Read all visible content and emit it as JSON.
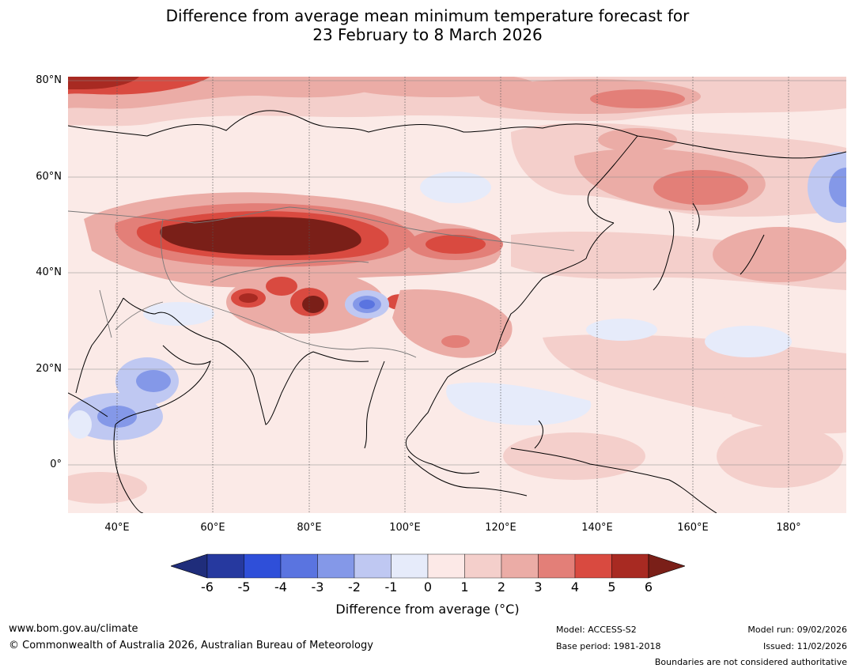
{
  "title_line1": "Difference from average mean minimum temperature forecast for",
  "title_line2": "23 February to 8 March 2026",
  "lat_labels": [
    "80°N",
    "60°N",
    "40°N",
    "20°N",
    "0°"
  ],
  "lon_labels": [
    "40°E",
    "60°E",
    "80°E",
    "100°E",
    "120°E",
    "140°E",
    "160°E",
    "180°"
  ],
  "colorbar": {
    "ticks": [
      "-6",
      "-5",
      "-4",
      "-3",
      "-2",
      "-1",
      "0",
      "1",
      "2",
      "3",
      "4",
      "5",
      "6"
    ],
    "colors": [
      "#26399f",
      "#2f4fd9",
      "#5a74e0",
      "#8498e8",
      "#bfc8f2",
      "#e6ebfa",
      "#fce9e7",
      "#f4cfcb",
      "#ebaca6",
      "#e37f78",
      "#d94a40",
      "#a82a22"
    ],
    "low_extend_color": "#1f2d7b",
    "high_extend_color": "#7a1f18",
    "title": "Difference from average (°C)"
  },
  "footer": {
    "url": "www.bom.gov.au/climate",
    "copyright": "© Commonwealth of Australia 2026, Australian Bureau of Meteorology",
    "model": "Model: ACCESS-S2",
    "base_period": "Base period: 1981-2018",
    "model_run": "Model run: 09/02/2026",
    "issued": "Issued: 11/02/2026",
    "boundaries": "Boundaries are not considered authoritative"
  }
}
